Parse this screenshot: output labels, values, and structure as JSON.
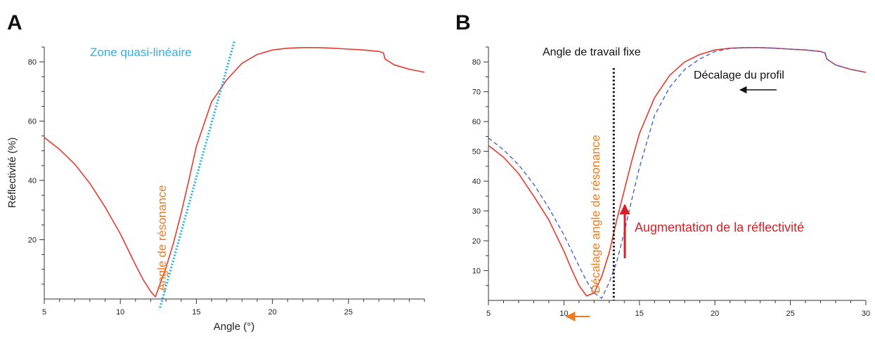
{
  "colors": {
    "measured_curve": "#e83a2c",
    "shifted_curve": "#3b58d8",
    "tangent": "#27b3e6",
    "orange_annotation": "#ee7b1f",
    "red_annotation": "#d61f26",
    "black_annotation": "#111111"
  },
  "chart_data": [
    {
      "type": "line",
      "panel_letter": "A",
      "xlabel": "Angle (°)",
      "ylabel": "Réflectivité (%)",
      "xlim": [
        5,
        30
      ],
      "ylim": [
        0,
        85
      ],
      "x_ticks": [
        5,
        10,
        15,
        20,
        25
      ],
      "y_ticks": [
        20,
        40,
        60,
        80
      ],
      "grid": false,
      "series": [
        {
          "style": "solid",
          "color": "#e83a2c",
          "x": [
            5,
            6,
            7,
            8,
            9,
            10,
            11,
            11.5,
            12,
            12.3,
            13,
            13.5,
            14,
            14.5,
            15,
            16,
            17,
            18,
            19,
            20,
            21,
            22,
            23,
            24,
            25,
            26,
            27,
            27.3,
            27.4,
            28,
            29,
            30
          ],
          "y": [
            54.5,
            50.5,
            45.5,
            39,
            31,
            22,
            11.5,
            6.5,
            2.5,
            0.7,
            10.5,
            19,
            29,
            40,
            51.5,
            66.5,
            74,
            79.5,
            82.5,
            84,
            84.6,
            84.8,
            84.8,
            84.6,
            84.3,
            84,
            83.5,
            83,
            81,
            79,
            77.5,
            76.5
          ]
        },
        {
          "style": "dotted",
          "color": "#27b3e6",
          "x": [
            12.5,
            17.5
          ],
          "y": [
            -5,
            87
          ]
        }
      ],
      "annotations": {
        "tangent_label": "Zone quasi-linéaire",
        "resonance_label": "Angle de résonance"
      }
    },
    {
      "type": "line",
      "panel_letter": "B",
      "xlabel": "Angle (°)",
      "ylabel": "Réflectivité (%)",
      "xlim": [
        5,
        30
      ],
      "ylim": [
        0,
        85
      ],
      "x_ticks": [
        5,
        10,
        15,
        20,
        25,
        30
      ],
      "y_ticks": [
        10,
        20,
        30,
        40,
        50,
        60,
        70,
        80
      ],
      "grid": false,
      "series": [
        {
          "style": "solid",
          "color": "#e83a2c",
          "x": [
            5,
            6,
            7,
            8,
            9,
            10,
            10.5,
            11,
            11.5,
            12,
            12.5,
            13,
            13.5,
            14,
            14.5,
            15,
            16,
            17,
            18,
            19,
            20,
            21,
            22,
            23,
            24,
            25,
            26,
            27,
            27.3,
            27.4,
            28,
            29,
            30
          ],
          "y": [
            52,
            48,
            42.5,
            35,
            27,
            16.5,
            10.5,
            5,
            1.5,
            2.5,
            8,
            16,
            27,
            37,
            47,
            56,
            68,
            75.5,
            80,
            82.5,
            84,
            84.6,
            84.8,
            84.8,
            84.6,
            84.3,
            84,
            83.5,
            83,
            81,
            79,
            77.5,
            76.5
          ]
        },
        {
          "style": "dashed",
          "color": "#3b58d8",
          "x": [
            5,
            6,
            7,
            8,
            9,
            10,
            11,
            11.5,
            12,
            12.5,
            13,
            13.5,
            14,
            14.5,
            15,
            16,
            17,
            18,
            19,
            20,
            21,
            22,
            23,
            24,
            25,
            26,
            27,
            27.3,
            27.4,
            28,
            29,
            30
          ],
          "y": [
            54.5,
            50.5,
            45.5,
            39,
            31,
            22,
            11.5,
            6.5,
            2.5,
            0.7,
            6,
            13,
            23,
            34,
            44.5,
            62,
            71.5,
            77.5,
            81,
            83.5,
            84.5,
            84.8,
            84.8,
            84.6,
            84.3,
            84,
            83.5,
            83,
            81,
            79,
            77.5,
            76.5
          ]
        }
      ],
      "annotations": {
        "working_angle_label": "Angle de travail fixe",
        "working_angle_x": 13.3,
        "profile_shift_label": "Décalage du profil",
        "resonance_shift_label": "Décalage angle de résonance",
        "reflectivity_increase_label": "Augmentation de la réflectivité"
      }
    }
  ]
}
